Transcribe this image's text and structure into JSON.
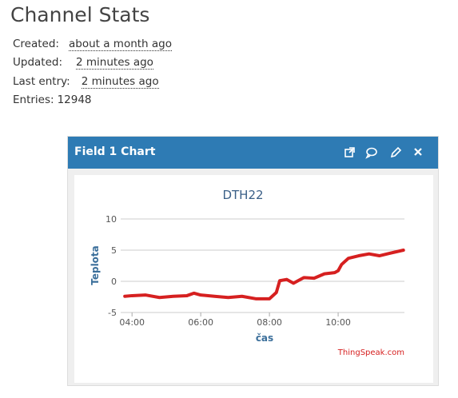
{
  "header": {
    "title": "Channel Stats"
  },
  "stats": [
    {
      "label": "Created:",
      "value": "about a month ago"
    },
    {
      "label": "Updated:",
      "value": "2 minutes ago"
    },
    {
      "label": "Last entry:",
      "value": "2 minutes ago"
    },
    {
      "label": "Entries:",
      "value": "12948"
    }
  ],
  "panel": {
    "title": "Field 1 Chart",
    "footer": "ThingSpeak.com"
  },
  "chart_data": {
    "type": "line",
    "title": "DTH22",
    "x_label": "čas",
    "y_label": "Teplota",
    "xlim": [
      3.67,
      11.93
    ],
    "xticks": [
      {
        "value": 4,
        "label": "04:00"
      },
      {
        "value": 6,
        "label": "06:00"
      },
      {
        "value": 8,
        "label": "08:00"
      },
      {
        "value": 10,
        "label": "10:00"
      }
    ],
    "ylim": [
      -5,
      10
    ],
    "yticks": [
      10,
      5,
      0,
      -5
    ],
    "grid": true,
    "series": [
      {
        "name": "Field 1",
        "color": "#d62020",
        "x": [
          3.79,
          4.0,
          4.4,
          4.8,
          5.2,
          5.6,
          5.8,
          6.0,
          6.4,
          6.8,
          7.2,
          7.6,
          8.0,
          8.2,
          8.3,
          8.5,
          8.7,
          9.0,
          9.3,
          9.6,
          9.9,
          10.0,
          10.1,
          10.3,
          10.6,
          10.9,
          11.2,
          11.5,
          11.9
        ],
        "values": [
          -2.4,
          -2.3,
          -2.2,
          -2.6,
          -2.4,
          -2.3,
          -1.9,
          -2.2,
          -2.4,
          -2.6,
          -2.4,
          -2.8,
          -2.8,
          -1.8,
          0.1,
          0.3,
          -0.3,
          0.6,
          0.5,
          1.2,
          1.4,
          1.7,
          2.7,
          3.7,
          4.1,
          4.4,
          4.1,
          4.5,
          5.0
        ]
      }
    ]
  }
}
